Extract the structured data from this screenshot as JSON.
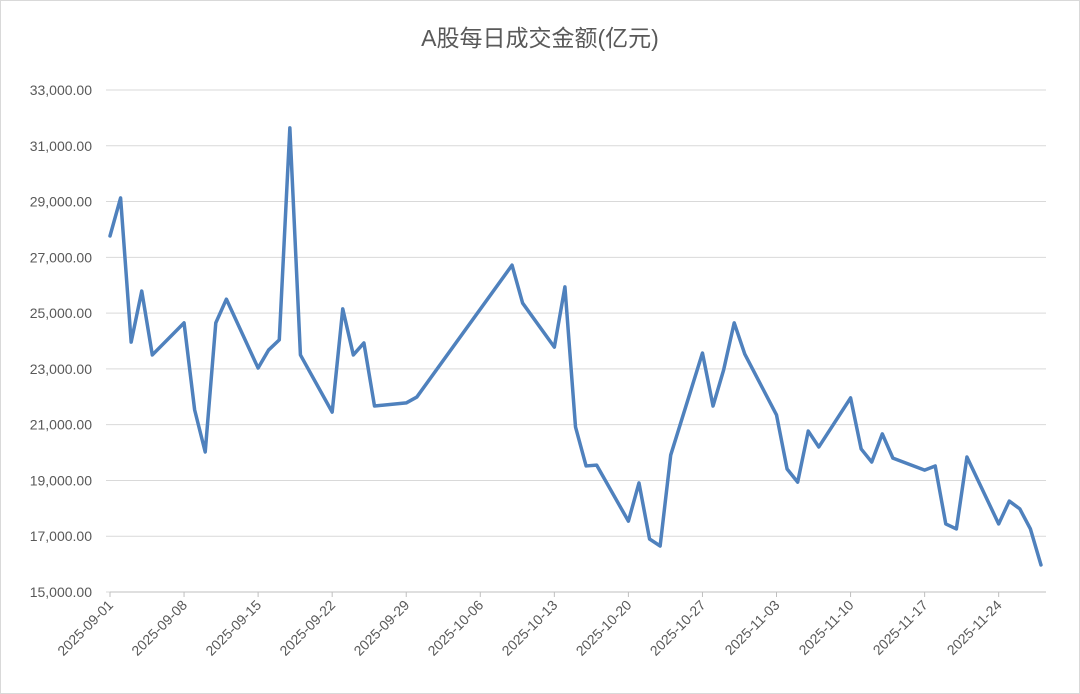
{
  "chart_data": {
    "type": "line",
    "title": "A股每日成交金额(亿元)",
    "x": [
      "2025-09-01",
      "2025-09-02",
      "2025-09-03",
      "2025-09-04",
      "2025-09-05",
      "2025-09-08",
      "2025-09-09",
      "2025-09-10",
      "2025-09-11",
      "2025-09-12",
      "2025-09-15",
      "2025-09-16",
      "2025-09-17",
      "2025-09-18",
      "2025-09-19",
      "2025-09-22",
      "2025-09-23",
      "2025-09-24",
      "2025-09-25",
      "2025-09-26",
      "2025-09-29",
      "2025-09-30",
      "2025-10-09",
      "2025-10-10",
      "2025-10-13",
      "2025-10-14",
      "2025-10-15",
      "2025-10-16",
      "2025-10-17",
      "2025-10-20",
      "2025-10-21",
      "2025-10-22",
      "2025-10-23",
      "2025-10-24",
      "2025-10-27",
      "2025-10-28",
      "2025-10-29",
      "2025-10-30",
      "2025-10-31",
      "2025-11-03",
      "2025-11-04",
      "2025-11-05",
      "2025-11-06",
      "2025-11-07",
      "2025-11-10",
      "2025-11-11",
      "2025-11-12",
      "2025-11-13",
      "2025-11-14",
      "2025-11-17",
      "2025-11-18",
      "2025-11-19",
      "2025-11-20",
      "2025-11-21",
      "2025-11-24",
      "2025-11-25",
      "2025-11-26",
      "2025-11-27",
      "2025-11-28"
    ],
    "series": [
      {
        "color": "#4f81bd",
        "values": [
          27765,
          29130,
          23960,
          25790,
          23500,
          24650,
          21530,
          20020,
          24650,
          25500,
          23030,
          23680,
          24040,
          31640,
          23500,
          21450,
          25150,
          23500,
          23930,
          21670,
          21780,
          21990,
          26720,
          25360,
          23780,
          25940,
          20920,
          19520,
          19550,
          17540,
          18910,
          16900,
          16650,
          19910,
          23570,
          21670,
          22960,
          24650,
          23530,
          21350,
          19410,
          18940,
          20770,
          20200,
          21960,
          20130,
          19660,
          20670,
          19800,
          19370,
          19520,
          17440,
          17260,
          19840,
          17440,
          18260,
          17980,
          17260,
          15970
        ]
      }
    ],
    "xlim": [
      "2025-09-01",
      "2025-11-28"
    ],
    "xticks": [
      "2025-09-01",
      "2025-09-08",
      "2025-09-15",
      "2025-09-22",
      "2025-09-29",
      "2025-10-06",
      "2025-10-13",
      "2025-10-20",
      "2025-10-27",
      "2025-11-03",
      "2025-11-10",
      "2025-11-17",
      "2025-11-24"
    ],
    "ylim": [
      15000,
      33000
    ],
    "yticks": [
      {
        "value": 15000,
        "label": "15,000.00"
      },
      {
        "value": 17000,
        "label": "17,000.00"
      },
      {
        "value": 19000,
        "label": "19,000.00"
      },
      {
        "value": 21000,
        "label": "21,000.00"
      },
      {
        "value": 23000,
        "label": "23,000.00"
      },
      {
        "value": 25000,
        "label": "25,000.00"
      },
      {
        "value": 27000,
        "label": "27,000.00"
      },
      {
        "value": 29000,
        "label": "29,000.00"
      },
      {
        "value": 31000,
        "label": "31,000.00"
      },
      {
        "value": 33000,
        "label": "33,000.00"
      }
    ],
    "grid": true
  }
}
